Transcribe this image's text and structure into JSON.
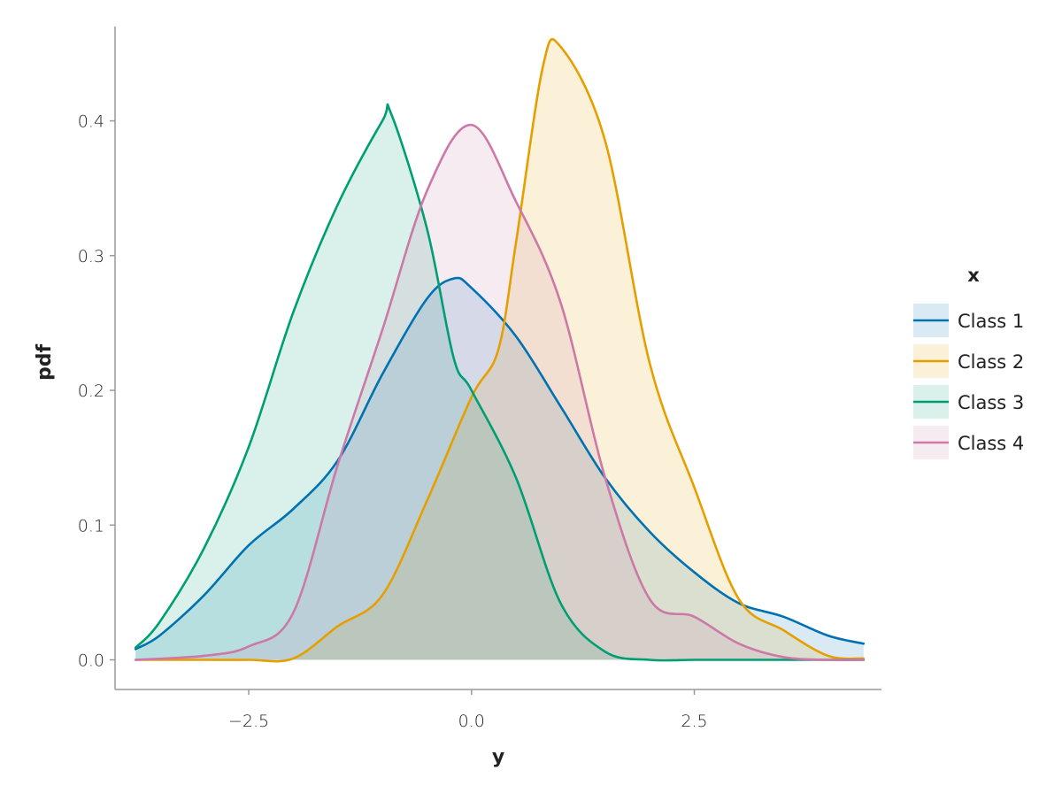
{
  "chart_data": {
    "type": "area",
    "xlabel": "y",
    "ylabel": "pdf",
    "xlim": [
      -4.0,
      4.6
    ],
    "ylim": [
      -0.022,
      0.47
    ],
    "xticks": [
      -2.5,
      0.0,
      2.5
    ],
    "xtick_labels": [
      "−2.5",
      "0.0",
      "2.5"
    ],
    "yticks": [
      0.0,
      0.1,
      0.2,
      0.3,
      0.4
    ],
    "ytick_labels": [
      "0.0",
      "0.1",
      "0.2",
      "0.3",
      "0.4"
    ],
    "grid": false,
    "legend": {
      "title": "x",
      "placement": "right"
    },
    "series": [
      {
        "name": "Class 1",
        "color": "#0072B2",
        "x": [
          -3.77,
          -3.5,
          -3.0,
          -2.5,
          -2.0,
          -1.5,
          -1.0,
          -0.5,
          -0.2,
          0.0,
          0.5,
          1.0,
          1.5,
          2.0,
          2.5,
          3.0,
          3.5,
          4.0,
          4.4
        ],
        "y": [
          0.008,
          0.018,
          0.048,
          0.085,
          0.112,
          0.148,
          0.212,
          0.268,
          0.283,
          0.276,
          0.24,
          0.188,
          0.135,
          0.095,
          0.065,
          0.042,
          0.032,
          0.018,
          0.012
        ]
      },
      {
        "name": "Class 2",
        "color": "#E69F00",
        "x": [
          -3.77,
          -3.0,
          -2.5,
          -2.0,
          -1.5,
          -1.0,
          -0.5,
          0.0,
          0.3,
          0.5,
          0.8,
          1.0,
          1.5,
          2.0,
          2.5,
          3.0,
          3.5,
          4.0,
          4.4
        ],
        "y": [
          0.0,
          0.0,
          0.0,
          0.001,
          0.025,
          0.048,
          0.118,
          0.195,
          0.23,
          0.31,
          0.44,
          0.455,
          0.385,
          0.22,
          0.128,
          0.045,
          0.022,
          0.003,
          0.001
        ]
      },
      {
        "name": "Class 3",
        "color": "#009E73",
        "x": [
          -3.77,
          -3.5,
          -3.0,
          -2.5,
          -2.0,
          -1.5,
          -1.0,
          -0.9,
          -0.5,
          -0.2,
          0.0,
          0.5,
          1.0,
          1.5,
          2.0,
          2.5,
          3.0,
          3.5,
          4.0,
          4.4
        ],
        "y": [
          0.009,
          0.028,
          0.083,
          0.158,
          0.258,
          0.338,
          0.4,
          0.405,
          0.32,
          0.224,
          0.2,
          0.135,
          0.042,
          0.006,
          0.0,
          0.0,
          0.0,
          0.0,
          0.0,
          0.0
        ]
      },
      {
        "name": "Class 4",
        "color": "#CC79A7",
        "x": [
          -3.77,
          -3.0,
          -2.5,
          -2.0,
          -1.5,
          -1.0,
          -0.5,
          0.0,
          0.5,
          1.0,
          1.5,
          2.0,
          2.5,
          3.0,
          3.5,
          4.0,
          4.4
        ],
        "y": [
          0.0,
          0.003,
          0.01,
          0.035,
          0.145,
          0.245,
          0.348,
          0.397,
          0.34,
          0.265,
          0.135,
          0.045,
          0.032,
          0.012,
          0.002,
          0.0,
          0.0
        ]
      }
    ]
  }
}
